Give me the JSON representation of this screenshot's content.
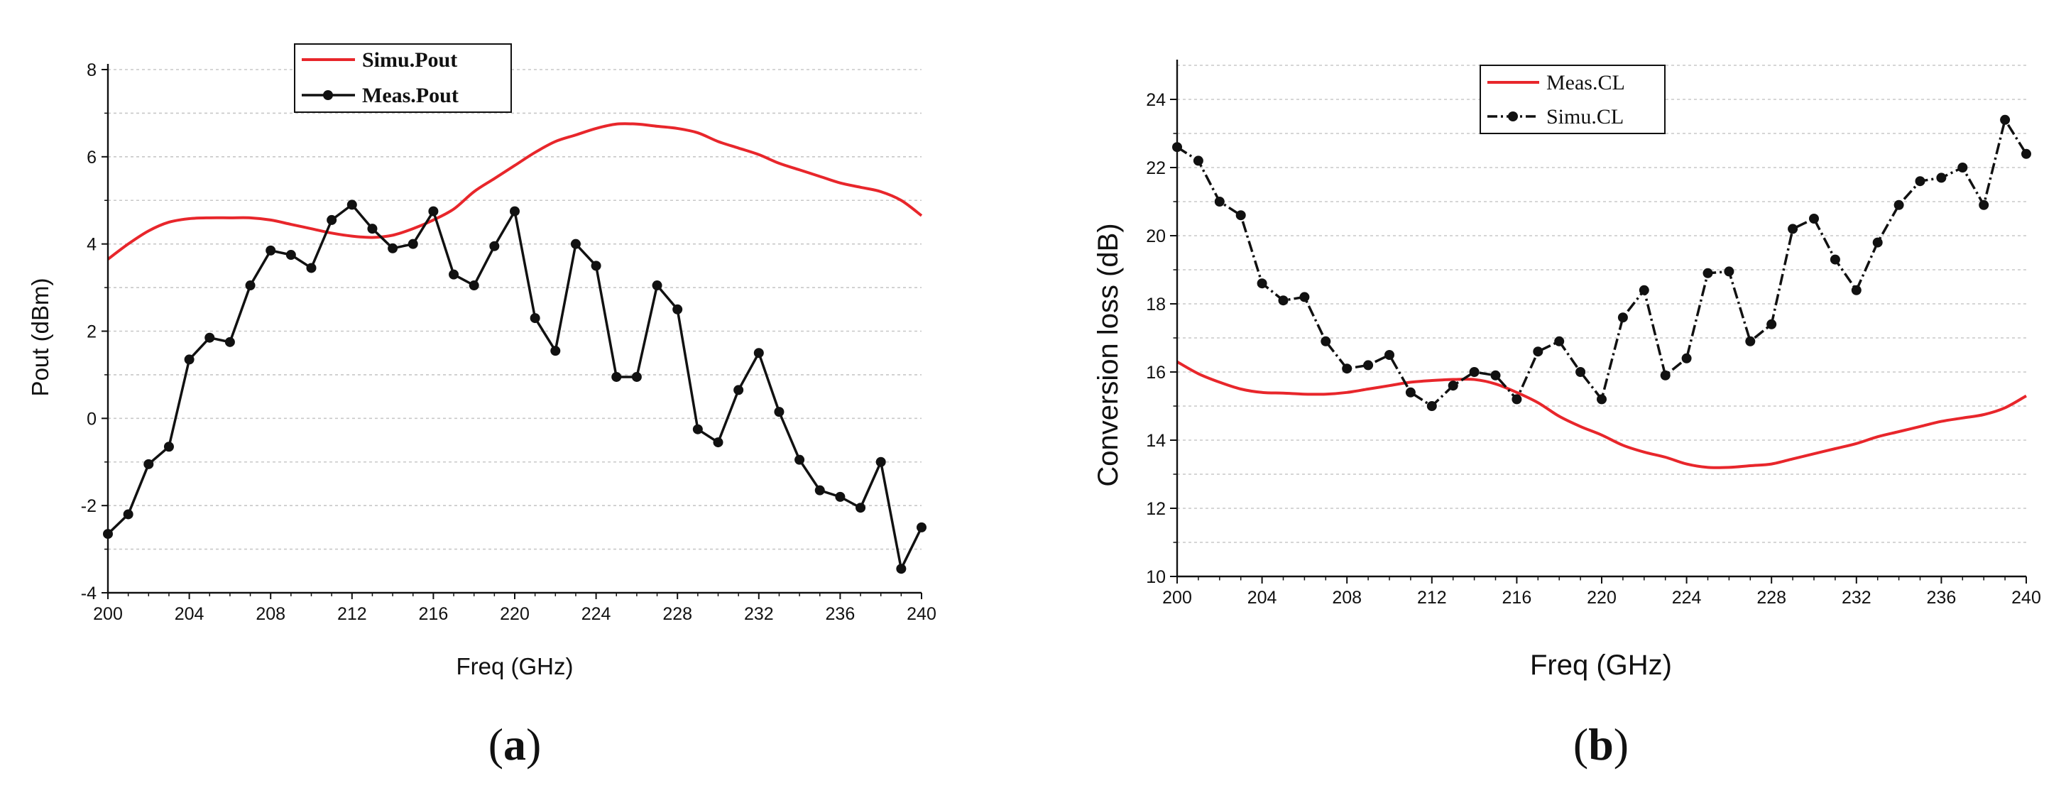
{
  "chart_data": [
    {
      "type": "line",
      "panel_label": "a",
      "xlabel": "Freq (GHz)",
      "ylabel": "Pout (dBm)",
      "xlim": [
        200,
        240
      ],
      "ylim": [
        -4,
        8
      ],
      "x_ticks": [
        "200",
        "204",
        "208",
        "212",
        "216",
        "220",
        "224",
        "228",
        "232",
        "236",
        "240"
      ],
      "y_ticks": [
        "-4",
        "-2",
        "0",
        "2",
        "4",
        "6",
        "8"
      ],
      "grid": "horizontal dashed",
      "legend": "top-center",
      "series": [
        {
          "name": "Simu.Pout",
          "color": "#e8262b",
          "marker": "none",
          "x": [
            200,
            201,
            202,
            203,
            204,
            205,
            206,
            207,
            208,
            209,
            210,
            211,
            212,
            213,
            214,
            215,
            216,
            217,
            218,
            219,
            220,
            221,
            222,
            223,
            224,
            225,
            226,
            227,
            228,
            229,
            230,
            231,
            232,
            233,
            234,
            235,
            236,
            237,
            238,
            239,
            240
          ],
          "values": [
            3.65,
            4.0,
            4.3,
            4.5,
            4.58,
            4.6,
            4.6,
            4.6,
            4.55,
            4.45,
            4.35,
            4.25,
            4.18,
            4.15,
            4.2,
            4.35,
            4.55,
            4.8,
            5.2,
            5.5,
            5.8,
            6.1,
            6.35,
            6.5,
            6.65,
            6.75,
            6.75,
            6.7,
            6.65,
            6.55,
            6.35,
            6.2,
            6.05,
            5.85,
            5.7,
            5.55,
            5.4,
            5.3,
            5.2,
            5.0,
            4.65
          ]
        },
        {
          "name": "Meas.Pout",
          "color": "#111111",
          "marker": "circle",
          "x": [
            200,
            201,
            202,
            203,
            204,
            205,
            206,
            207,
            208,
            209,
            210,
            211,
            212,
            213,
            214,
            215,
            216,
            217,
            218,
            219,
            220,
            221,
            222,
            223,
            224,
            225,
            226,
            227,
            228,
            229,
            230,
            231,
            232,
            233,
            234,
            235,
            236,
            237,
            238,
            239,
            240
          ],
          "values": [
            -2.65,
            -2.2,
            -1.05,
            -0.65,
            1.35,
            1.85,
            1.75,
            3.05,
            3.85,
            3.75,
            3.45,
            4.55,
            4.9,
            4.35,
            3.9,
            4.0,
            4.75,
            3.3,
            3.05,
            3.95,
            4.75,
            2.3,
            1.55,
            4.0,
            3.5,
            0.95,
            0.95,
            3.05,
            2.5,
            -0.25,
            -0.55,
            0.65,
            1.5,
            0.15,
            -0.95,
            -1.65,
            -1.8,
            -2.05,
            -1.0,
            -3.45,
            -2.5
          ]
        }
      ]
    },
    {
      "type": "line",
      "panel_label": "b",
      "xlabel": "Freq (GHz)",
      "ylabel": "Conversion loss (dB)",
      "xlim": [
        200,
        240
      ],
      "ylim": [
        10,
        25
      ],
      "x_ticks": [
        "200",
        "204",
        "208",
        "212",
        "216",
        "220",
        "224",
        "228",
        "232",
        "236",
        "240"
      ],
      "y_ticks": [
        "10",
        "12",
        "14",
        "16",
        "18",
        "20",
        "22",
        "24"
      ],
      "grid": "horizontal dashed",
      "legend": "top-center",
      "series": [
        {
          "name": "Meas.CL",
          "color": "#e8262b",
          "marker": "none",
          "x": [
            200,
            201,
            202,
            203,
            204,
            205,
            206,
            207,
            208,
            209,
            210,
            211,
            212,
            213,
            214,
            215,
            216,
            217,
            218,
            219,
            220,
            221,
            222,
            223,
            224,
            225,
            226,
            227,
            228,
            229,
            230,
            231,
            232,
            233,
            234,
            235,
            236,
            237,
            238,
            239,
            240
          ],
          "values": [
            16.3,
            15.95,
            15.7,
            15.5,
            15.4,
            15.38,
            15.35,
            15.35,
            15.4,
            15.5,
            15.6,
            15.7,
            15.75,
            15.78,
            15.78,
            15.65,
            15.4,
            15.1,
            14.7,
            14.4,
            14.15,
            13.85,
            13.65,
            13.5,
            13.3,
            13.2,
            13.2,
            13.25,
            13.3,
            13.45,
            13.6,
            13.75,
            13.9,
            14.1,
            14.25,
            14.4,
            14.55,
            14.65,
            14.75,
            14.95,
            15.3
          ]
        },
        {
          "name": "Simu.CL",
          "color": "#111111",
          "marker": "circle",
          "x": [
            200,
            201,
            202,
            203,
            204,
            205,
            206,
            207,
            208,
            209,
            210,
            211,
            212,
            213,
            214,
            215,
            216,
            217,
            218,
            219,
            220,
            221,
            222,
            223,
            224,
            225,
            226,
            227,
            228,
            229,
            230,
            231,
            232,
            233,
            234,
            235,
            236,
            237,
            238,
            239,
            240
          ],
          "values": [
            22.6,
            22.2,
            21.0,
            20.6,
            18.6,
            18.1,
            18.2,
            16.9,
            16.1,
            16.2,
            16.5,
            15.4,
            15.0,
            15.6,
            16.0,
            15.9,
            15.2,
            16.6,
            16.9,
            16.0,
            15.2,
            17.6,
            18.4,
            15.9,
            16.4,
            18.9,
            18.95,
            16.9,
            17.4,
            20.2,
            20.5,
            19.3,
            18.4,
            19.8,
            20.9,
            21.6,
            21.7,
            22.0,
            20.9,
            23.4,
            22.4
          ]
        }
      ]
    }
  ]
}
